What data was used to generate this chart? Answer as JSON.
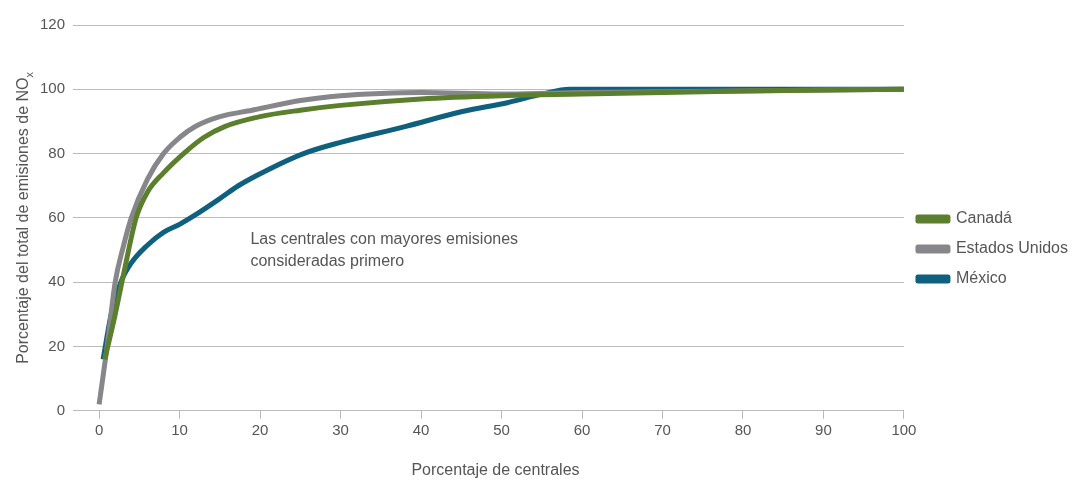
{
  "chart_data": {
    "type": "line",
    "xlabel": "Porcentaje de centrales",
    "ylabel": "Porcentaje del total de emisiones de NO$_{x}$",
    "xlim": [
      -1.5,
      100
    ],
    "xticks": [
      0,
      10,
      20,
      30,
      40,
      50,
      60,
      70,
      80,
      90,
      100
    ],
    "ylim": [
      0,
      120
    ],
    "yticks": [
      0,
      20,
      40,
      60,
      80,
      100,
      120
    ],
    "grid": "y",
    "legend": "right",
    "marker": "none",
    "line_style": "solid",
    "annotations": [
      "Las centrales con mayores emisiones consideradas primero"
    ],
    "series": [
      {
        "name": "Canadá",
        "color": "#5b7f2c",
        "x": [
          0.7,
          2,
          3,
          4.6,
          6,
          8,
          10.5,
          13,
          15.6,
          20,
          25,
          30,
          40,
          50,
          60,
          80,
          100
        ],
        "values": [
          16,
          30,
          42,
          60,
          68,
          74,
          80,
          85,
          88.4,
          91.5,
          93.5,
          95,
          97,
          98,
          98.5,
          99.5,
          100
        ]
      },
      {
        "name": "Estados Unidos",
        "color": "#87878b",
        "x": [
          0,
          1,
          2,
          3,
          4,
          6,
          8,
          10,
          12,
          15,
          19,
          25,
          30,
          35,
          40,
          50,
          60,
          80,
          100
        ],
        "values": [
          2,
          20,
          40,
          51,
          60,
          72,
          80,
          85,
          88.5,
          91.5,
          93.5,
          96.5,
          98,
          98.7,
          99,
          98.5,
          99,
          99.5,
          100
        ]
      },
      {
        "name": "México",
        "color": "#0f5f7f",
        "x": [
          0.5,
          1.5,
          2.7,
          4,
          6,
          8,
          10,
          12,
          15,
          17.3,
          21,
          25.4,
          30,
          38,
          45,
          51,
          55,
          58.5,
          70,
          100
        ],
        "values": [
          16,
          30,
          40,
          46,
          51.5,
          55.5,
          58,
          61,
          66,
          70,
          75,
          80,
          83.5,
          88.4,
          93,
          96,
          98.5,
          100,
          100,
          100
        ]
      }
    ]
  }
}
